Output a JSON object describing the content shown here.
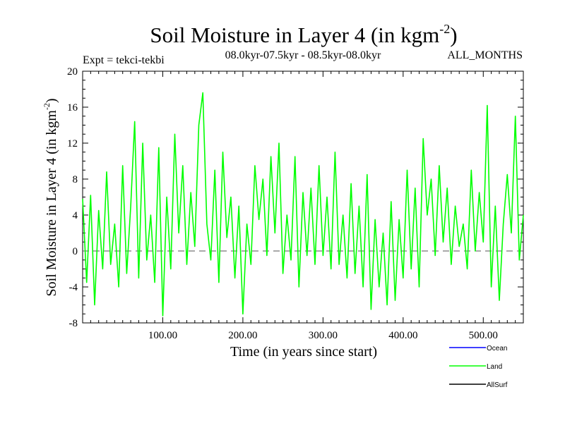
{
  "chart_data": {
    "type": "line",
    "title": "Soil Moisture in Layer 4 (in kgm",
    "title_sup": "-2",
    "title_end": ")",
    "subtitle_left": "Expt = tekci-tekbi",
    "subtitle_center": "08.0kyr-07.5kyr - 08.5kyr-08.0kyr",
    "subtitle_right": "ALL_MONTHS",
    "xlabel": "Time (in years since start)",
    "ylabel": "Soil Moisture in Layer 4 (in kgm",
    "ylabel_sup": "-2",
    "ylabel_end": ")",
    "xlim": [
      0,
      550
    ],
    "ylim": [
      -8,
      20
    ],
    "x_ticks": [
      100,
      200,
      300,
      400,
      500
    ],
    "x_tick_labels": [
      "100.00",
      "200.00",
      "300.00",
      "400.00",
      "500.00"
    ],
    "y_ticks": [
      -8,
      -4,
      0,
      4,
      8,
      12,
      16,
      20
    ],
    "y_tick_labels": [
      "-8",
      "-4",
      "0",
      "4",
      "8",
      "12",
      "16",
      "20"
    ],
    "zero_line": 0,
    "legend": {
      "placement": "bottom-right, outside plot",
      "entries": [
        {
          "name": "Ocean",
          "color": "#0000ff"
        },
        {
          "name": "Land",
          "color": "#00ff00"
        },
        {
          "name": "AllSurf",
          "color": "#000000"
        }
      ]
    },
    "series": [
      {
        "name": "Land",
        "color": "#00ff00",
        "x": [
          0,
          5,
          10,
          15,
          20,
          25,
          30,
          35,
          40,
          45,
          50,
          55,
          60,
          65,
          70,
          75,
          80,
          85,
          90,
          95,
          100,
          105,
          110,
          115,
          120,
          125,
          130,
          135,
          140,
          145,
          150,
          155,
          160,
          165,
          170,
          175,
          180,
          185,
          190,
          195,
          200,
          205,
          210,
          215,
          220,
          225,
          230,
          235,
          240,
          245,
          250,
          255,
          260,
          265,
          270,
          275,
          280,
          285,
          290,
          295,
          300,
          305,
          310,
          315,
          320,
          325,
          330,
          335,
          340,
          345,
          350,
          355,
          360,
          365,
          370,
          375,
          380,
          385,
          390,
          395,
          400,
          405,
          410,
          415,
          420,
          425,
          430,
          435,
          440,
          445,
          450,
          455,
          460,
          465,
          470,
          475,
          480,
          485,
          490,
          495,
          500,
          505,
          510,
          515,
          520,
          525,
          530,
          535,
          540,
          545,
          550
        ],
        "values": [
          5.8,
          -3.5,
          6.2,
          -6.0,
          4.5,
          -2.0,
          8.8,
          -1.5,
          3.0,
          -4.0,
          9.5,
          -2.5,
          5.0,
          14.4,
          -3.0,
          12.0,
          -1.0,
          4.0,
          -3.5,
          11.5,
          -7.2,
          6.0,
          -2.0,
          13.0,
          2.0,
          9.5,
          -1.5,
          6.5,
          0.5,
          14.0,
          17.6,
          3.0,
          -1.0,
          9.0,
          -3.5,
          11.0,
          1.5,
          6.0,
          -3.0,
          5.0,
          -7.0,
          3.0,
          -1.5,
          9.5,
          3.5,
          8.0,
          -0.5,
          10.5,
          2.0,
          12.0,
          -2.5,
          4.0,
          -1.0,
          10.5,
          -4.0,
          6.5,
          -0.5,
          7.0,
          -1.5,
          9.5,
          -0.5,
          6.0,
          -2.0,
          11.0,
          -1.5,
          4.0,
          -3.0,
          7.5,
          -2.5,
          5.0,
          -4.0,
          8.5,
          -6.5,
          3.5,
          -4.0,
          2.0,
          -6.0,
          5.5,
          -5.5,
          3.5,
          -3.0,
          9.0,
          -2.0,
          7.0,
          -4.0,
          12.5,
          4.0,
          8.0,
          -0.5,
          9.5,
          1.0,
          7.0,
          -1.5,
          5.0,
          0.5,
          3.0,
          -2.0,
          9.0,
          0.0,
          6.5,
          1.0,
          16.2,
          -4.0,
          5.0,
          -5.5,
          3.0,
          8.5,
          2.0,
          15.0,
          -1.0,
          4.0
        ]
      }
    ]
  }
}
